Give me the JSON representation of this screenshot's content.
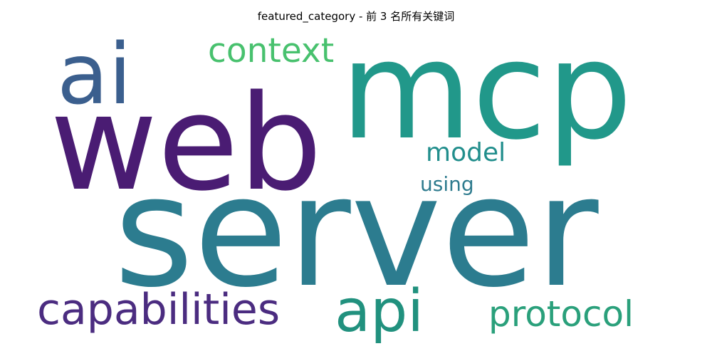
{
  "chart_data": {
    "type": "wordcloud",
    "title": "featured_category - 前 3 名所有关键词",
    "words": [
      {
        "text": "server",
        "color": "#2c7c8f"
      },
      {
        "text": "web",
        "color": "#4a1c73"
      },
      {
        "text": "mcp",
        "color": "#21988a"
      },
      {
        "text": "ai",
        "color": "#3b5f8e"
      },
      {
        "text": "api",
        "color": "#21917e"
      },
      {
        "text": "capabilities",
        "color": "#4b2c80"
      },
      {
        "text": "protocol",
        "color": "#2aa07b"
      },
      {
        "text": "context",
        "color": "#48c16e"
      },
      {
        "text": "model",
        "color": "#218e8c"
      },
      {
        "text": "using",
        "color": "#2e7b8e"
      }
    ]
  }
}
